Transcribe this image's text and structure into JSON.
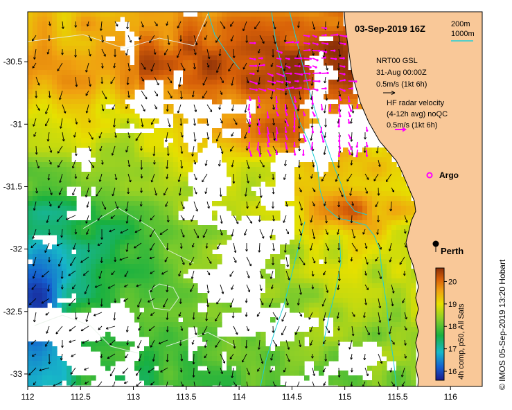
{
  "map": {
    "title": "03-Sep-2019 16Z",
    "extent": {
      "lon": [
        112,
        116.3
      ],
      "lat": [
        -33.1,
        -30.1
      ]
    },
    "xticks": [
      {
        "value": 112,
        "label": "112"
      },
      {
        "value": 112.5,
        "label": "112.5"
      },
      {
        "value": 113,
        "label": "113"
      },
      {
        "value": 113.5,
        "label": "113.5"
      },
      {
        "value": 114,
        "label": "114"
      },
      {
        "value": 114.5,
        "label": "114.5"
      },
      {
        "value": 115,
        "label": "115"
      },
      {
        "value": 115.5,
        "label": "115.5"
      },
      {
        "value": 116,
        "label": "116"
      }
    ],
    "yticks": [
      {
        "value": -30.5,
        "label": "-30.5"
      },
      {
        "value": -31,
        "label": "-31"
      },
      {
        "value": -31.5,
        "label": "-31.5"
      },
      {
        "value": -32,
        "label": "-32"
      },
      {
        "value": -32.5,
        "label": "-32.5"
      },
      {
        "value": -33,
        "label": "-33"
      }
    ],
    "legend_depth": {
      "line1": "200m",
      "line2": "1000m"
    },
    "nrt_legend": {
      "line1": "NRT00 GSL",
      "line2": "31-Aug 00:00Z",
      "line3": "0.5m/s (1kt 6h)"
    },
    "hf_legend": {
      "line1": "HF radar velocity",
      "line2": "(4-12h avg) noQC",
      "line3": "0.5m/s (1kt 6h)"
    },
    "argo_label": "Argo",
    "place": {
      "name": "Perth",
      "lon": 115.86,
      "lat": -31.95
    },
    "colorbar": {
      "min": 15.6,
      "max": 20.6,
      "ticks": [
        "16",
        "17",
        "18",
        "19",
        "20"
      ],
      "label": "4h comp, p50, All Sats"
    },
    "credit": "© IMOS 05-Sep-2019 13:20 Hobart",
    "colors": {
      "land": "#f9c898",
      "contour": "#1cd0d8",
      "hf_arrow": "#ff00ff",
      "vector": "#000000"
    }
  }
}
